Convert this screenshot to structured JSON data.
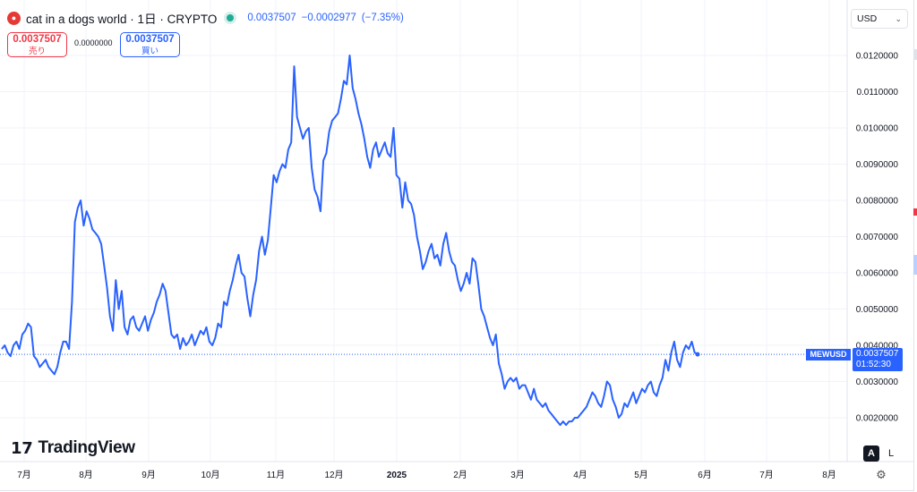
{
  "header": {
    "logo_glyph": "●",
    "title": "cat in a dogs world · 1日 · CRYPTO",
    "last_price": "0.0037507",
    "change": "−0.0002977",
    "change_pct": "(−7.35%)"
  },
  "trade": {
    "sell_price": "0.0037507",
    "sell_label": "売り",
    "spread": "0.0000000",
    "buy_price": "0.0037507",
    "buy_label": "買い"
  },
  "currency_select": {
    "value": "USD"
  },
  "price_scale": {
    "symbol_label": "MEWUSD",
    "last_price": "0.0037507",
    "countdown": "01:52:30"
  },
  "branding": {
    "name": "TradingView"
  },
  "controls": {
    "auto_label": "A",
    "log_label": "L"
  },
  "colors": {
    "line": "#2962ff",
    "grid": "#f0f3fa",
    "accent_red": "#f23645"
  },
  "chart_data": {
    "type": "line",
    "series": [
      {
        "name": "MEWUSD",
        "values": [
          0.0039,
          0.004,
          0.0038,
          0.0037,
          0.004,
          0.0041,
          0.0039,
          0.0043,
          0.0044,
          0.0046,
          0.0045,
          0.0037,
          0.0036,
          0.0034,
          0.0035,
          0.0036,
          0.0034,
          0.0033,
          0.0032,
          0.0034,
          0.0038,
          0.0041,
          0.0041,
          0.0039,
          0.0052,
          0.0074,
          0.0078,
          0.008,
          0.0073,
          0.0077,
          0.0075,
          0.0072,
          0.0071,
          0.007,
          0.0068,
          0.0062,
          0.0056,
          0.0048,
          0.0044,
          0.0058,
          0.005,
          0.0055,
          0.0045,
          0.0043,
          0.0047,
          0.0048,
          0.0045,
          0.0044,
          0.0046,
          0.0048,
          0.0044,
          0.0047,
          0.0049,
          0.0052,
          0.0054,
          0.0057,
          0.0055,
          0.0049,
          0.0043,
          0.0042,
          0.0043,
          0.0039,
          0.0042,
          0.004,
          0.0041,
          0.0043,
          0.004,
          0.0042,
          0.0044,
          0.0043,
          0.0045,
          0.0041,
          0.004,
          0.0042,
          0.0046,
          0.0045,
          0.0052,
          0.0051,
          0.0055,
          0.0058,
          0.0062,
          0.0065,
          0.006,
          0.0059,
          0.0053,
          0.0048,
          0.0054,
          0.0058,
          0.0066,
          0.007,
          0.0065,
          0.0069,
          0.0078,
          0.0087,
          0.0085,
          0.0088,
          0.009,
          0.0089,
          0.0094,
          0.0096,
          0.0117,
          0.0103,
          0.01,
          0.0097,
          0.0099,
          0.01,
          0.0089,
          0.0083,
          0.0081,
          0.0077,
          0.0091,
          0.0093,
          0.0099,
          0.0102,
          0.0103,
          0.0104,
          0.0108,
          0.0113,
          0.0112,
          0.012,
          0.0111,
          0.0108,
          0.0104,
          0.0101,
          0.0097,
          0.0092,
          0.0089,
          0.0094,
          0.0096,
          0.0092,
          0.0094,
          0.0096,
          0.0093,
          0.0092,
          0.01,
          0.0087,
          0.0086,
          0.0078,
          0.0085,
          0.008,
          0.0079,
          0.0076,
          0.007,
          0.0066,
          0.0061,
          0.0063,
          0.0066,
          0.0068,
          0.0064,
          0.0065,
          0.0062,
          0.0068,
          0.0071,
          0.0066,
          0.0063,
          0.0062,
          0.0058,
          0.0055,
          0.0057,
          0.006,
          0.0057,
          0.0064,
          0.0063,
          0.0057,
          0.005,
          0.0048,
          0.0045,
          0.0042,
          0.004,
          0.0043,
          0.0035,
          0.0032,
          0.0028,
          0.003,
          0.0031,
          0.003,
          0.0031,
          0.0028,
          0.0029,
          0.0029,
          0.0027,
          0.0025,
          0.0028,
          0.0025,
          0.0024,
          0.0023,
          0.0024,
          0.0022,
          0.0021,
          0.002,
          0.0019,
          0.0018,
          0.0019,
          0.0018,
          0.0019,
          0.0019,
          0.002,
          0.002,
          0.0021,
          0.0022,
          0.0023,
          0.0025,
          0.0027,
          0.0026,
          0.0024,
          0.0023,
          0.0026,
          0.003,
          0.0029,
          0.0025,
          0.0023,
          0.002,
          0.0021,
          0.0024,
          0.0023,
          0.0025,
          0.0027,
          0.0024,
          0.0026,
          0.0028,
          0.0027,
          0.0029,
          0.003,
          0.0027,
          0.0026,
          0.0029,
          0.0031,
          0.0036,
          0.0033,
          0.0038,
          0.0041,
          0.0036,
          0.0034,
          0.0038,
          0.004,
          0.0039,
          0.0041,
          0.0038,
          0.0037507
        ]
      }
    ],
    "x_ticks": [
      "7月",
      "8月",
      "9月",
      "10月",
      "11月",
      "12月",
      "2025",
      "2月",
      "3月",
      "4月",
      "5月",
      "6月",
      "7月",
      "8月"
    ],
    "y_ticks": [
      "0.0020000",
      "0.0030000",
      "0.0040000",
      "0.0050000",
      "0.0060000",
      "0.0070000",
      "0.0080000",
      "0.0090000",
      "0.0100000",
      "0.0110000",
      "0.0120000"
    ],
    "ylim": [
      0.001,
      0.0132
    ],
    "last_value": 0.0037507
  }
}
